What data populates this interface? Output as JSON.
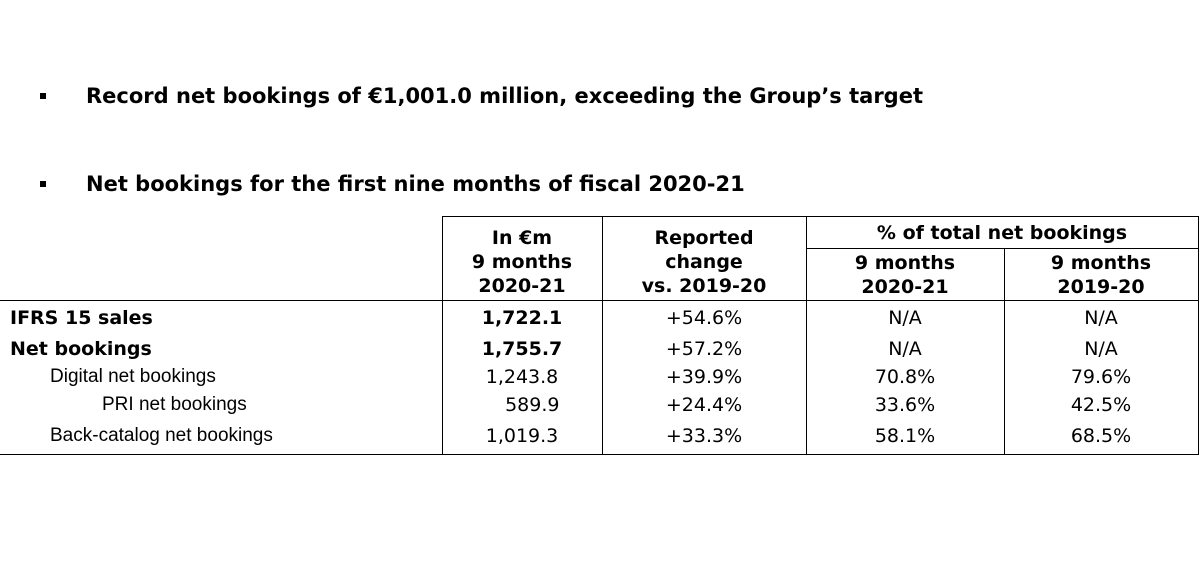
{
  "bullets": [
    "Record net bookings of €1,001.0 million, exceeding the Group’s target",
    "Net bookings for the first nine months of fiscal 2020-21"
  ],
  "table": {
    "headers": {
      "col1": [
        "In €m",
        "9 months",
        "2020-21"
      ],
      "col2": [
        "Reported",
        "change",
        "vs. 2019-20"
      ],
      "group": "% of total net bookings",
      "col3": [
        "9 months",
        "2020-21"
      ],
      "col4": [
        "9 months",
        "2019-20"
      ]
    },
    "rows": [
      {
        "label": "IFRS 15 sales",
        "value": "1,722.1",
        "change": "+54.6%",
        "pct2021": "N/A",
        "pct1920": "N/A"
      },
      {
        "label": "Net bookings",
        "value": "1,755.7",
        "change": "+57.2%",
        "pct2021": "N/A",
        "pct1920": "N/A"
      },
      {
        "label": "Digital net bookings",
        "value": "1,243.8",
        "change": "+39.9%",
        "pct2021": "70.8%",
        "pct1920": "79.6%"
      },
      {
        "label": "PRI net bookings",
        "value": "589.9",
        "change": "+24.4%",
        "pct2021": "33.6%",
        "pct1920": "42.5%"
      },
      {
        "label": "Back-catalog net bookings",
        "value": "1,019.3",
        "change": "+33.3%",
        "pct2021": "58.1%",
        "pct1920": "68.5%"
      }
    ]
  }
}
